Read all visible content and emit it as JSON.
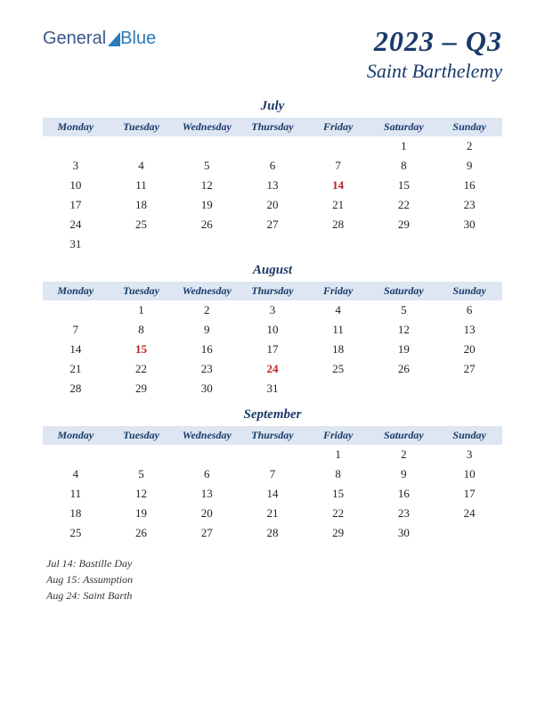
{
  "logo": {
    "part1": "General",
    "part2": "Blue"
  },
  "title": {
    "quarter": "2023 – Q3",
    "region": "Saint Barthelemy"
  },
  "colors": {
    "header_bg": "#dde6f2",
    "text_primary": "#1a3a6a",
    "holiday": "#c02020",
    "cell_text": "#222222",
    "logo_general": "#3a5a8a",
    "logo_blue": "#2a7ab8"
  },
  "day_headers": [
    "Monday",
    "Tuesday",
    "Wednesday",
    "Thursday",
    "Friday",
    "Saturday",
    "Sunday"
  ],
  "months": [
    {
      "name": "July",
      "weeks": [
        [
          "",
          "",
          "",
          "",
          "",
          "1",
          "2"
        ],
        [
          "3",
          "4",
          "5",
          "6",
          "7",
          "8",
          "9"
        ],
        [
          "10",
          "11",
          "12",
          "13",
          "14",
          "15",
          "16"
        ],
        [
          "17",
          "18",
          "19",
          "20",
          "21",
          "22",
          "23"
        ],
        [
          "24",
          "25",
          "26",
          "27",
          "28",
          "29",
          "30"
        ],
        [
          "31",
          "",
          "",
          "",
          "",
          "",
          ""
        ]
      ],
      "holidays_cells": [
        [
          2,
          4
        ]
      ]
    },
    {
      "name": "August",
      "weeks": [
        [
          "",
          "1",
          "2",
          "3",
          "4",
          "5",
          "6"
        ],
        [
          "7",
          "8",
          "9",
          "10",
          "11",
          "12",
          "13"
        ],
        [
          "14",
          "15",
          "16",
          "17",
          "18",
          "19",
          "20"
        ],
        [
          "21",
          "22",
          "23",
          "24",
          "25",
          "26",
          "27"
        ],
        [
          "28",
          "29",
          "30",
          "31",
          "",
          "",
          ""
        ]
      ],
      "holidays_cells": [
        [
          2,
          1
        ],
        [
          3,
          3
        ]
      ]
    },
    {
      "name": "September",
      "weeks": [
        [
          "",
          "",
          "",
          "",
          "1",
          "2",
          "3"
        ],
        [
          "4",
          "5",
          "6",
          "7",
          "8",
          "9",
          "10"
        ],
        [
          "11",
          "12",
          "13",
          "14",
          "15",
          "16",
          "17"
        ],
        [
          "18",
          "19",
          "20",
          "21",
          "22",
          "23",
          "24"
        ],
        [
          "25",
          "26",
          "27",
          "28",
          "29",
          "30",
          ""
        ]
      ],
      "holidays_cells": []
    }
  ],
  "holiday_list": [
    "Jul 14: Bastille Day",
    "Aug 15: Assumption",
    "Aug 24: Saint Barth"
  ]
}
